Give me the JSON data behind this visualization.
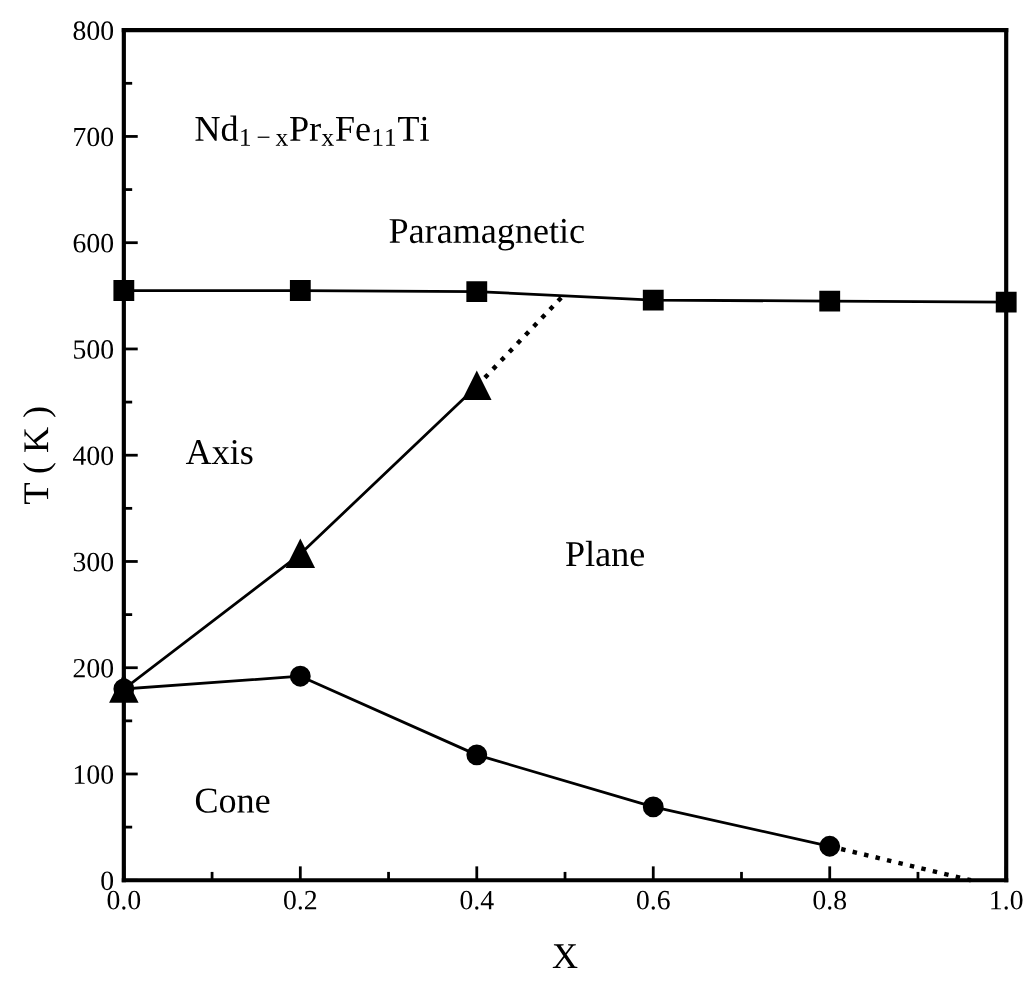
{
  "chart_data": {
    "type": "line",
    "xlabel": "X",
    "ylabel": "T ( K )",
    "xlim": [
      0,
      1
    ],
    "ylim": [
      0,
      800
    ],
    "xticks": [
      {
        "value": 0,
        "label": "0.0"
      },
      {
        "value": 0.2,
        "label": "0.2"
      },
      {
        "value": 0.4,
        "label": "0.4"
      },
      {
        "value": 0.6,
        "label": "0.6"
      },
      {
        "value": 0.8,
        "label": "0.8"
      },
      {
        "value": 1,
        "label": "1.0"
      }
    ],
    "yticks": [
      0,
      100,
      200,
      300,
      400,
      500,
      600,
      700,
      800
    ],
    "grid": false,
    "legend": false,
    "annotations": [
      "Nd$_{1−x}$Pr$_{x}$Fe$_{11}$Ti",
      "Paramagnetic",
      "Axis",
      "Plane",
      "Cone"
    ],
    "series": [
      {
        "color": "#000000",
        "marker": "square",
        "line_style": "solid",
        "x": [
          0,
          0.2,
          0.4,
          0.6,
          0.8,
          1.0
        ],
        "values": [
          555,
          555,
          554,
          546,
          545,
          544
        ]
      },
      {
        "color": "#000000",
        "marker": "circle",
        "line_style": "solid",
        "x": [
          0,
          0.2,
          0.4,
          0.6,
          0.8
        ],
        "values": [
          180,
          192,
          118,
          69,
          32
        ]
      },
      {
        "color": "#000000",
        "marker": "triangle",
        "line_style": "solid",
        "x": [
          0,
          0.2,
          0.4
        ],
        "values": [
          180,
          307,
          465
        ]
      },
      {
        "color": "#000000",
        "marker": "none",
        "line_style": "dotted",
        "x": [
          0.4,
          0.5
        ],
        "values": [
          465,
          552
        ]
      },
      {
        "color": "#000000",
        "marker": "none",
        "line_style": "dotted",
        "x": [
          0.8,
          0.96
        ],
        "values": [
          32,
          0
        ]
      }
    ]
  }
}
